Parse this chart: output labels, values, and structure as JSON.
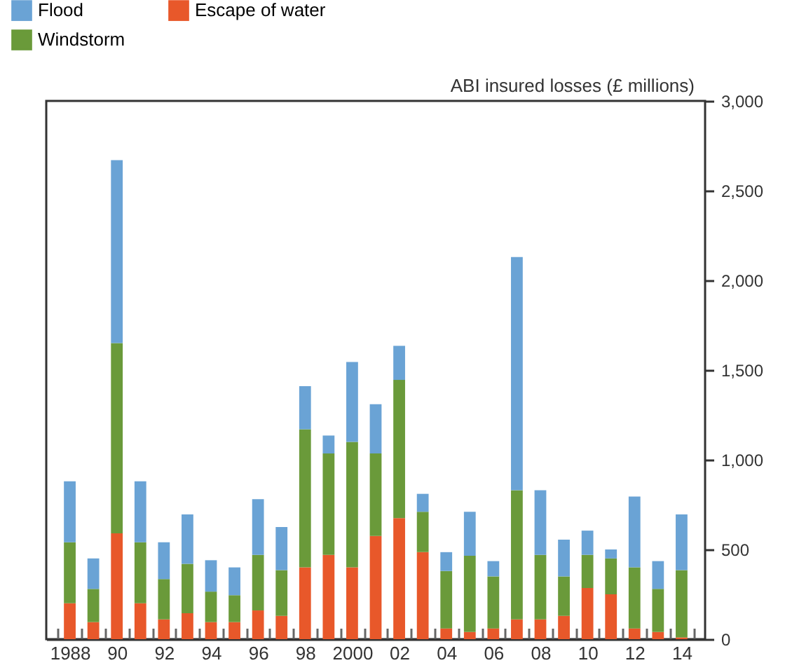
{
  "chart_data": {
    "type": "bar",
    "stacked": true,
    "ylabel": "ABI insured losses (£ millions)",
    "categories": [
      "1988",
      null,
      "90",
      null,
      "92",
      null,
      "94",
      null,
      "96",
      null,
      "98",
      null,
      "2000",
      null,
      "02",
      null,
      "04",
      null,
      "06",
      null,
      "08",
      null,
      "10",
      null,
      "12",
      null,
      "14"
    ],
    "series": [
      {
        "name": "Escape of water",
        "color": "#e8582a",
        "values": [
          200,
          95,
          590,
          200,
          110,
          145,
          95,
          95,
          160,
          130,
          400,
          470,
          400,
          575,
          675,
          485,
          60,
          40,
          60,
          110,
          110,
          130,
          285,
          250,
          60,
          40,
          10
        ]
      },
      {
        "name": "Windstorm",
        "color": "#6a9a3a",
        "values": [
          340,
          185,
          1060,
          340,
          225,
          275,
          170,
          150,
          310,
          255,
          770,
          565,
          700,
          460,
          770,
          225,
          320,
          425,
          290,
          720,
          360,
          220,
          185,
          200,
          340,
          240,
          375
        ]
      },
      {
        "name": "Flood",
        "color": "#6aa3d5",
        "values": [
          340,
          170,
          1020,
          340,
          205,
          275,
          175,
          155,
          310,
          240,
          240,
          100,
          445,
          275,
          190,
          100,
          105,
          245,
          85,
          1300,
          360,
          205,
          135,
          50,
          395,
          155,
          310
        ]
      }
    ],
    "ylim": [
      0,
      3000
    ],
    "yticks": [
      0,
      500,
      {
        "value": 1000,
        "label": "1,000"
      },
      {
        "value": 1500,
        "label": "1,500"
      },
      {
        "value": 2000,
        "label": "2,000"
      },
      {
        "value": 2500,
        "label": "2,500"
      },
      {
        "value": 3000,
        "label": "3,000"
      }
    ],
    "grid": false,
    "legend": "top left"
  }
}
